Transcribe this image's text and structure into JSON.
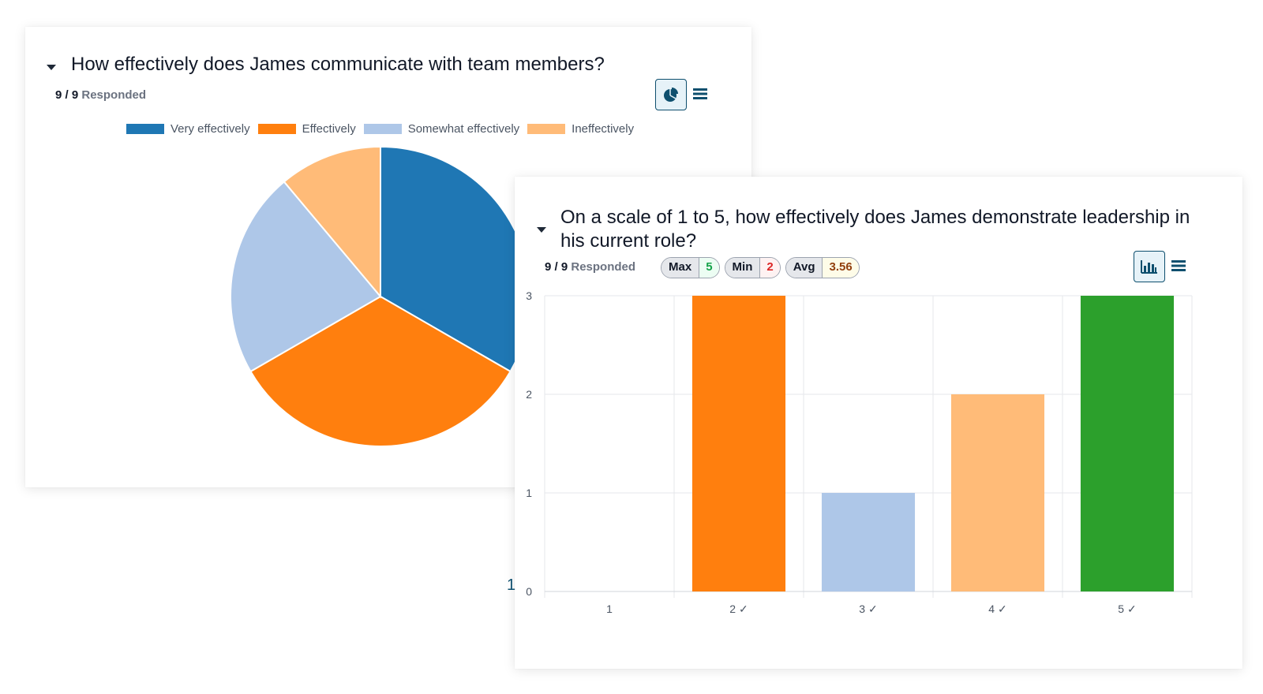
{
  "card1": {
    "title": "How effectively does James communicate with team members?",
    "responded_count": "9 / 9",
    "responded_label": "Responded",
    "chart_icon": "pie-chart-icon",
    "menu_icon": "menu-icon",
    "legend": [
      {
        "label": "Very effectively",
        "color": "#1f77b4"
      },
      {
        "label": "Effectively",
        "color": "#ff7f0e"
      },
      {
        "label": "Somewhat effectively",
        "color": "#aec7e8"
      },
      {
        "label": "Ineffectively",
        "color": "#ffbb78"
      }
    ]
  },
  "card2": {
    "title": "On a scale of 1 to 5, how effectively does James demonstrate leadership in his current role?",
    "responded_count": "9 / 9",
    "responded_label": "Responded",
    "stats": {
      "max_label": "Max",
      "max_value": "5",
      "min_label": "Min",
      "min_value": "2",
      "avg_label": "Avg",
      "avg_value": "3.56"
    },
    "chart_icon": "bar-chart-icon",
    "menu_icon": "menu-icon"
  },
  "page_number": "1",
  "chart_data": [
    {
      "type": "pie",
      "categories": [
        "Very effectively",
        "Effectively",
        "Somewhat effectively",
        "Ineffectively"
      ],
      "values": [
        3,
        3,
        2,
        1
      ],
      "colors": [
        "#1f77b4",
        "#ff7f0e",
        "#aec7e8",
        "#ffbb78"
      ],
      "legend": "top"
    },
    {
      "type": "bar",
      "categories": [
        "1",
        "2 ✓",
        "3 ✓",
        "4 ✓",
        "5 ✓"
      ],
      "values": [
        0,
        3,
        1,
        2,
        3
      ],
      "colors": [
        "#1f77b4",
        "#ff7f0e",
        "#aec7e8",
        "#ffbb78",
        "#2ca02c"
      ],
      "ylim": [
        0,
        3
      ],
      "yticks": [
        "0",
        "1",
        "2",
        "3"
      ],
      "grid": true
    }
  ]
}
